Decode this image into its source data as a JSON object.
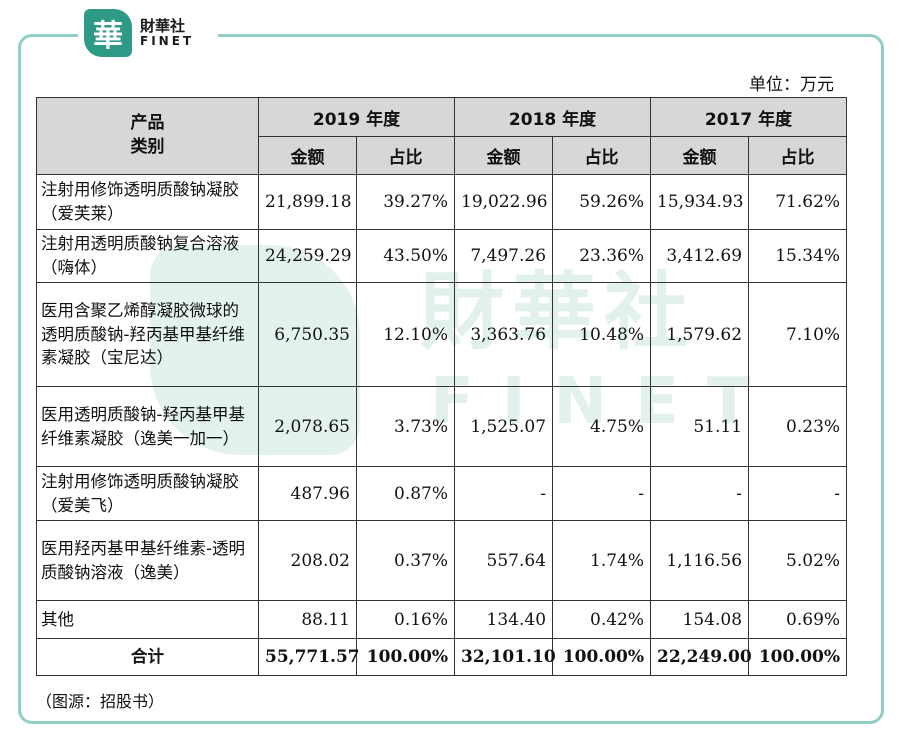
{
  "logo": {
    "mark": "華",
    "cn": "財華社",
    "en": "FINET"
  },
  "unit_label": "单位：万元",
  "header": {
    "category_line1": "产品",
    "category_line2": "类别",
    "years": [
      "2019 年度",
      "2018 年度",
      "2017 年度"
    ],
    "amount": "金额",
    "share": "占比"
  },
  "rows": [
    {
      "name": "注射用修饰透明质酸钠凝胶（爱芙莱）",
      "values": [
        "21,899.18",
        "39.27%",
        "19,022.96",
        "59.26%",
        "15,934.93",
        "71.62%"
      ]
    },
    {
      "name": "注射用透明质酸钠复合溶液（嗨体）",
      "values": [
        "24,259.29",
        "43.50%",
        "7,497.26",
        "23.36%",
        "3,412.69",
        "15.34%"
      ]
    },
    {
      "name": "医用含聚乙烯醇凝胶微球的透明质酸钠-羟丙基甲基纤维素凝胶（宝尼达）",
      "values": [
        "6,750.35",
        "12.10%",
        "3,363.76",
        "10.48%",
        "1,579.62",
        "7.10%"
      ]
    },
    {
      "name": "医用透明质酸钠-羟丙基甲基纤维素凝胶（逸美一加一）",
      "values": [
        "2,078.65",
        "3.73%",
        "1,525.07",
        "4.75%",
        "51.11",
        "0.23%"
      ]
    },
    {
      "name": "注射用修饰透明质酸钠凝胶（爱美飞）",
      "values": [
        "487.96",
        "0.87%",
        "-",
        "-",
        "-",
        "-"
      ]
    },
    {
      "name": "医用羟丙基甲基纤维素-透明质酸钠溶液（逸美）",
      "values": [
        "208.02",
        "0.37%",
        "557.64",
        "1.74%",
        "1,116.56",
        "5.02%"
      ]
    },
    {
      "name": "其他",
      "values": [
        "88.11",
        "0.16%",
        "134.40",
        "0.42%",
        "154.08",
        "0.69%"
      ]
    }
  ],
  "total": {
    "name": "合计",
    "values": [
      "55,771.57",
      "100.00%",
      "32,101.10",
      "100.00%",
      "22,249.00",
      "100.00%"
    ]
  },
  "source": "（图源：招股书）",
  "watermark": {
    "cn": "財華社",
    "en": "FINET"
  }
}
